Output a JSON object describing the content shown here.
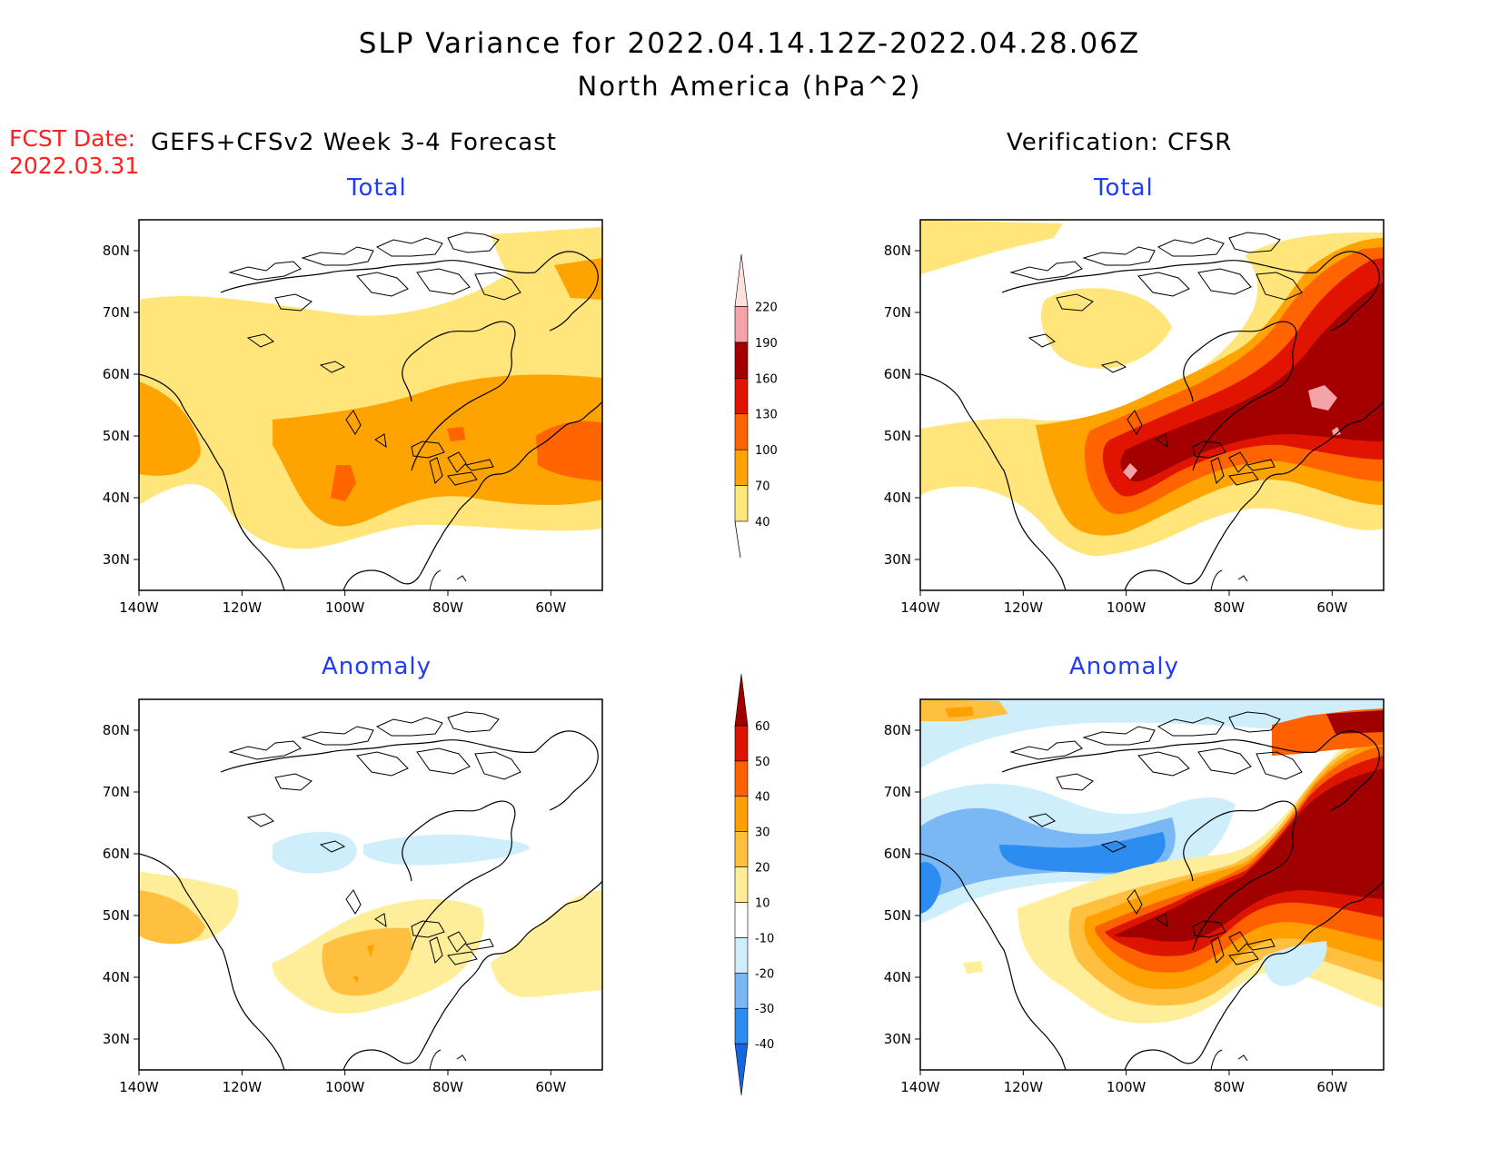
{
  "title": "SLP Variance for 2022.04.14.12Z-2022.04.28.06Z",
  "subtitle": "North America (hPa^2)",
  "fcst_label": "FCST Date:",
  "fcst_date": "2022.03.31",
  "left_column_title": "GEFS+CFSv2 Week 3-4 Forecast",
  "right_column_title": "Verification: CFSR",
  "panel_titles": {
    "top_left": "Total",
    "top_right": "Total",
    "bottom_left": "Anomaly",
    "bottom_right": "Anomaly"
  },
  "lon_labels": [
    "140W",
    "120W",
    "100W",
    "80W",
    "60W"
  ],
  "lat_labels": [
    "30N",
    "40N",
    "50N",
    "60N",
    "70N",
    "80N"
  ],
  "total_colorbar": {
    "labels": [
      "40",
      "70",
      "100",
      "130",
      "160",
      "190",
      "220"
    ],
    "colors": [
      "#ffe57a",
      "#ffa300",
      "#ff6400",
      "#e01400",
      "#a50000",
      "#f4a3a8",
      "#ffe0e0"
    ]
  },
  "anomaly_colorbar": {
    "labels": [
      "-40",
      "-30",
      "-20",
      "-10",
      "10",
      "20",
      "30",
      "40",
      "50",
      "60"
    ],
    "colors": [
      "#1564e0",
      "#2d8cf0",
      "#7ab8f5",
      "#cfeefc",
      "#ffffff",
      "#ffee99",
      "#ffc040",
      "#ffa000",
      "#ff6000",
      "#dd1400",
      "#a00000"
    ]
  },
  "colors": {
    "title_blue": "#1f3df5",
    "fcst_red": "#ff2020"
  }
}
